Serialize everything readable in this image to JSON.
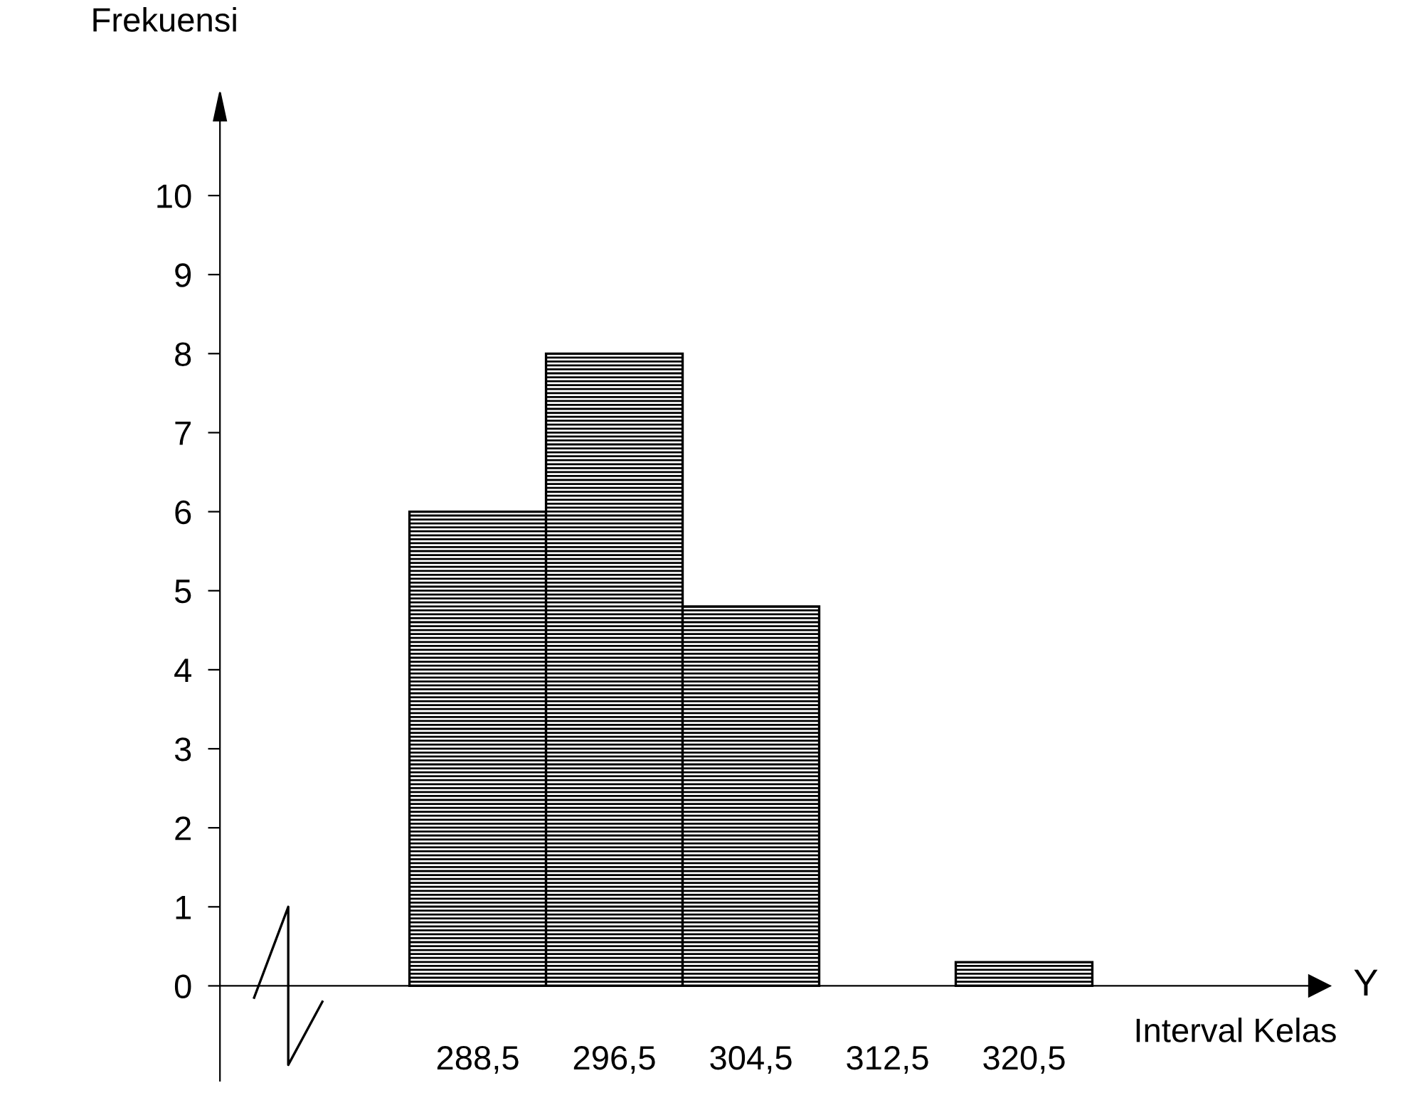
{
  "chart_data": {
    "type": "histogram",
    "ylabel": "Frekuensi",
    "xlabel": "Interval Kelas",
    "annotations": [
      "Y"
    ],
    "bins": [
      284.5,
      292.5,
      300.5,
      308.5,
      316.5,
      324.5
    ],
    "values": [
      6,
      8,
      4.8,
      0,
      0.3
    ],
    "color": "#000000",
    "xlim": [
      273.4,
      338.4
    ],
    "ylim": [
      -1.2,
      11.3
    ],
    "xticks": [
      {
        "value": 288.5,
        "label": "288,5"
      },
      {
        "value": 296.5,
        "label": "296,5"
      },
      {
        "value": 304.5,
        "label": "304,5"
      },
      {
        "value": 312.5,
        "label": "312,5"
      },
      {
        "value": 320.5,
        "label": "320,5"
      }
    ],
    "yticks": [
      0,
      1,
      2,
      3,
      4,
      5,
      6,
      7,
      8,
      9,
      10
    ],
    "grid": false,
    "legend": false
  }
}
